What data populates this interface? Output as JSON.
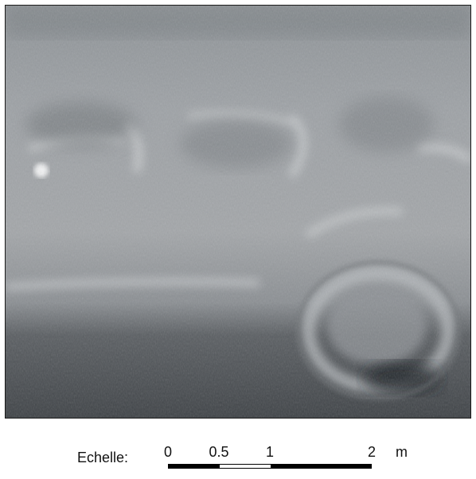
{
  "image": {
    "description_icon": "hillshade-relief-icon"
  },
  "scale": {
    "label": "Echelle:",
    "ticks": [
      "0",
      "0.5",
      "1",
      "2"
    ],
    "unit": "m"
  }
}
